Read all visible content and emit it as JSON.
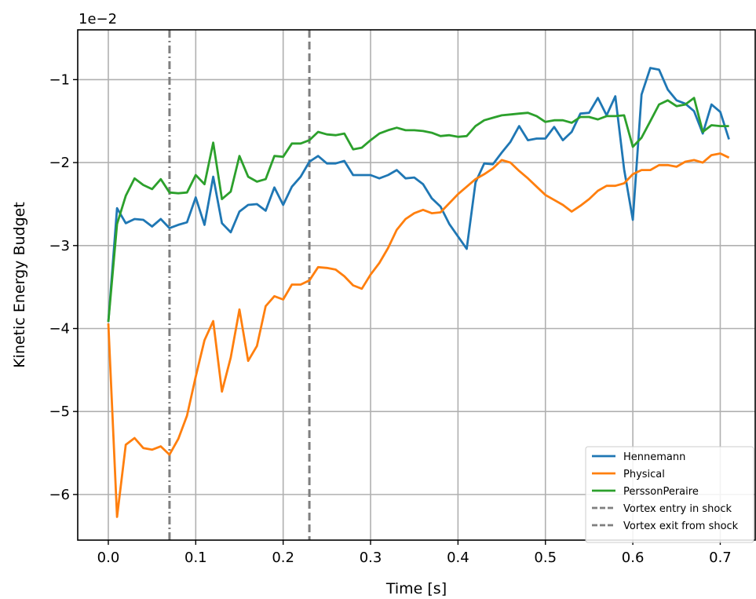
{
  "chart_data": {
    "type": "line",
    "xlabel": "Time [s]",
    "ylabel": "Kinetic Energy Budget",
    "y_offset_label": "1e−2",
    "xlim": [
      -0.035,
      0.74
    ],
    "ylim": [
      -6.55,
      -0.4
    ],
    "xticks": [
      0.0,
      0.1,
      0.2,
      0.3,
      0.4,
      0.5,
      0.6,
      0.7
    ],
    "xtick_labels": [
      "0.0",
      "0.1",
      "0.2",
      "0.3",
      "0.4",
      "0.5",
      "0.6",
      "0.7"
    ],
    "yticks": [
      -6,
      -5,
      -4,
      -3,
      -2,
      -1
    ],
    "ytick_labels": [
      "−6",
      "−5",
      "−4",
      "−3",
      "−2",
      "−1"
    ],
    "grid": true,
    "legend_position": "bottom-right",
    "x": [
      0.0,
      0.01,
      0.02,
      0.03,
      0.04,
      0.05,
      0.06,
      0.07,
      0.08,
      0.09,
      0.1,
      0.11,
      0.12,
      0.13,
      0.14,
      0.15,
      0.16,
      0.17,
      0.18,
      0.19,
      0.2,
      0.21,
      0.22,
      0.23,
      0.24,
      0.25,
      0.26,
      0.27,
      0.28,
      0.29,
      0.3,
      0.31,
      0.32,
      0.33,
      0.34,
      0.35,
      0.36,
      0.37,
      0.38,
      0.39,
      0.4,
      0.41,
      0.42,
      0.43,
      0.44,
      0.45,
      0.46,
      0.47,
      0.48,
      0.49,
      0.5,
      0.51,
      0.52,
      0.53,
      0.54,
      0.55,
      0.56,
      0.57,
      0.58,
      0.59,
      0.6,
      0.61,
      0.62,
      0.63,
      0.64,
      0.65,
      0.66,
      0.67,
      0.68,
      0.69,
      0.7,
      0.71
    ],
    "series": [
      {
        "name": "Hennemann",
        "color": "#1f77b4",
        "style": "solid",
        "values": [
          -3.92,
          -2.55,
          -2.73,
          -2.68,
          -2.69,
          -2.77,
          -2.68,
          -2.79,
          -2.75,
          -2.72,
          -2.42,
          -2.75,
          -2.17,
          -2.73,
          -2.84,
          -2.59,
          -2.51,
          -2.5,
          -2.58,
          -2.3,
          -2.51,
          -2.29,
          -2.17,
          -1.99,
          -1.92,
          -2.01,
          -2.01,
          -1.98,
          -2.15,
          -2.15,
          -2.15,
          -2.19,
          -2.15,
          -2.09,
          -2.19,
          -2.18,
          -2.26,
          -2.43,
          -2.53,
          -2.74,
          -2.89,
          -3.04,
          -2.24,
          -2.01,
          -2.02,
          -1.88,
          -1.75,
          -1.56,
          -1.73,
          -1.71,
          -1.71,
          -1.57,
          -1.73,
          -1.63,
          -1.41,
          -1.4,
          -1.22,
          -1.43,
          -1.2,
          -2.08,
          -2.69,
          -1.18,
          -0.86,
          -0.88,
          -1.12,
          -1.25,
          -1.29,
          -1.38,
          -1.65,
          -1.3,
          -1.39,
          -1.72
        ]
      },
      {
        "name": "Physical",
        "color": "#ff7f0e",
        "style": "solid",
        "values": [
          -3.94,
          -6.27,
          -5.4,
          -5.32,
          -5.44,
          -5.46,
          -5.42,
          -5.52,
          -5.33,
          -5.05,
          -4.58,
          -4.14,
          -3.91,
          -4.76,
          -4.35,
          -3.77,
          -4.39,
          -4.21,
          -3.73,
          -3.61,
          -3.65,
          -3.47,
          -3.47,
          -3.42,
          -3.26,
          -3.27,
          -3.29,
          -3.37,
          -3.48,
          -3.52,
          -3.35,
          -3.21,
          -3.03,
          -2.81,
          -2.68,
          -2.61,
          -2.57,
          -2.61,
          -2.6,
          -2.49,
          -2.38,
          -2.29,
          -2.2,
          -2.14,
          -2.07,
          -1.97,
          -2.0,
          -2.1,
          -2.19,
          -2.29,
          -2.39,
          -2.45,
          -2.51,
          -2.59,
          -2.52,
          -2.44,
          -2.34,
          -2.28,
          -2.28,
          -2.25,
          -2.14,
          -2.09,
          -2.09,
          -2.03,
          -2.03,
          -2.05,
          -1.99,
          -1.97,
          -2.0,
          -1.91,
          -1.89,
          -1.94
        ]
      },
      {
        "name": "PerssonPeraire",
        "color": "#2ca02c",
        "style": "solid",
        "values": [
          -3.92,
          -2.74,
          -2.4,
          -2.19,
          -2.27,
          -2.32,
          -2.2,
          -2.36,
          -2.37,
          -2.36,
          -2.15,
          -2.26,
          -1.76,
          -2.44,
          -2.35,
          -1.92,
          -2.17,
          -2.23,
          -2.2,
          -1.92,
          -1.93,
          -1.77,
          -1.77,
          -1.73,
          -1.63,
          -1.66,
          -1.67,
          -1.65,
          -1.84,
          -1.82,
          -1.73,
          -1.65,
          -1.61,
          -1.58,
          -1.61,
          -1.61,
          -1.62,
          -1.64,
          -1.68,
          -1.67,
          -1.69,
          -1.68,
          -1.56,
          -1.49,
          -1.46,
          -1.43,
          -1.42,
          -1.41,
          -1.4,
          -1.44,
          -1.51,
          -1.49,
          -1.49,
          -1.52,
          -1.45,
          -1.45,
          -1.48,
          -1.44,
          -1.44,
          -1.43,
          -1.81,
          -1.7,
          -1.5,
          -1.3,
          -1.25,
          -1.32,
          -1.3,
          -1.22,
          -1.63,
          -1.55,
          -1.56,
          -1.56
        ]
      }
    ],
    "vertical_lines": [
      {
        "name": "Vortex entry in shock",
        "x": 0.07,
        "color": "#7f7f7f",
        "style": "dashdot"
      },
      {
        "name": "Vortex exit from shock",
        "x": 0.23,
        "color": "#7f7f7f",
        "style": "dashed"
      }
    ],
    "colors": {
      "axis": "#000000",
      "grid": "#b0b0b0",
      "legend_border": "#cccccc"
    }
  }
}
